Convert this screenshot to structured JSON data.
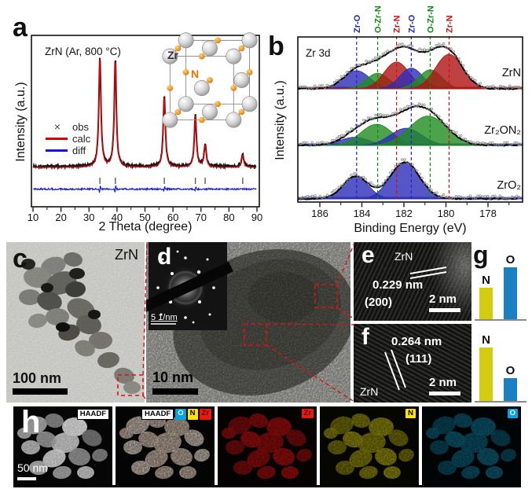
{
  "panel_a": {
    "letter": "a",
    "title": "ZrN (Ar, 800 °C)",
    "xlabel": "2 Theta (degree)",
    "ylabel": "Intensity (a.u.)",
    "legend": [
      {
        "marker": "×",
        "label": "obs",
        "color": "#333333"
      },
      {
        "marker": "line",
        "label": "calc",
        "color": "#dd0000"
      },
      {
        "marker": "line",
        "label": "diff",
        "color": "#1414e6"
      }
    ],
    "inset": {
      "zr_label": "Zr",
      "n_label": "N",
      "zr_color": "#9a9a9a",
      "n_color": "#e07800"
    }
  },
  "panel_b": {
    "letter": "b",
    "title": "Zr 3d",
    "xlabel": "Binding Energy (eV)",
    "ylabel": "Intensity (a.u.)"
  },
  "panel_c": {
    "letter": "c",
    "material_label": "ZrN",
    "scale_bar_label": "100 nm"
  },
  "panel_d": {
    "letter": "d",
    "scale_bar_label": "10 nm",
    "inset_scale_label": "5 1/nm"
  },
  "panel_e": {
    "letter": "e",
    "material_label": "ZrN",
    "d_spacing_label": "0.229 nm",
    "plane_label": "(200)",
    "scale_bar_label": "2 nm"
  },
  "panel_f": {
    "letter": "f",
    "material_label": "ZrN",
    "d_spacing_label": "0.264 nm",
    "plane_label": "(111)",
    "scale_bar_label": "2 nm"
  },
  "panel_g": {
    "letter": "g"
  },
  "panel_h": {
    "letter": "h",
    "scale_bar_label": "50 nm",
    "tiles": [
      {
        "name": "haadf",
        "badges": [
          "HAADF"
        ]
      },
      {
        "name": "haadf-overlay",
        "badges": [
          "HAADF",
          "O",
          "N",
          "Zr"
        ]
      },
      {
        "name": "zr-map",
        "badges": [
          "Zr"
        ]
      },
      {
        "name": "n-map",
        "badges": [
          "N"
        ]
      },
      {
        "name": "o-map",
        "badges": [
          "O"
        ]
      }
    ]
  },
  "colors": {
    "calc_red": "#dd0000",
    "diff_blue": "#1414e6",
    "xps_blue": "#2c2cb8",
    "xps_green": "#1f8c1f",
    "xps_red": "#b01212",
    "guide_blue": "#2222cc",
    "guide_green": "#0f8a0f",
    "guide_red": "#cc1111",
    "bar_N": "#d3cc11",
    "bar_O": "#1b7fc4",
    "badge_O": "#00a3e8",
    "badge_N": "#ffe400",
    "badge_Zr": "#e81a10",
    "map_red": "#b81010",
    "map_yellow": "#a8a00e",
    "map_teal": "#0e6a86"
  },
  "chart_data": [
    {
      "id": "panel_a_xrd",
      "type": "line",
      "title": "ZrN (Ar, 800 °C)",
      "xlabel": "2 Theta (degree)",
      "ylabel": "Intensity (a.u.)",
      "xlim": [
        10,
        90
      ],
      "xticks": [
        10,
        20,
        30,
        40,
        50,
        60,
        70,
        80,
        90
      ],
      "series": [
        "obs",
        "calc",
        "diff"
      ],
      "bragg_peaks": [
        {
          "two_theta": 33.9,
          "rel_intensity": 1.0
        },
        {
          "two_theta": 39.4,
          "rel_intensity": 0.98
        },
        {
          "two_theta": 56.9,
          "rel_intensity": 0.65
        },
        {
          "two_theta": 68.0,
          "rel_intensity": 0.47
        },
        {
          "two_theta": 71.5,
          "rel_intensity": 0.2
        },
        {
          "two_theta": 84.9,
          "rel_intensity": 0.11
        }
      ]
    },
    {
      "id": "panel_b_xps",
      "type": "area",
      "title": "Zr 3d",
      "xlabel": "Binding Energy (eV)",
      "ylabel": "Intensity (a.u.)",
      "xlim": [
        187,
        176.5
      ],
      "xticks": [
        186,
        184,
        182,
        180,
        178
      ],
      "guides": [
        {
          "label": "Zr-O",
          "ev": 184.25,
          "color": "#2222cc"
        },
        {
          "label": "O-Zr-N",
          "ev": 183.25,
          "color": "#0f8a0f"
        },
        {
          "label": "Zr-N",
          "ev": 182.35,
          "color": "#cc1111"
        },
        {
          "label": "Zr-O",
          "ev": 181.65,
          "color": "#2222cc"
        },
        {
          "label": "O-Zr-N",
          "ev": 180.75,
          "color": "#0f8a0f"
        },
        {
          "label": "Zr-N",
          "ev": 179.85,
          "color": "#cc1111"
        }
      ],
      "spectra": [
        {
          "name": "ZrN",
          "components": [
            {
              "assign": "Zr-O",
              "center": 184.25,
              "sigma": 0.62,
              "height": 0.42,
              "color": "#2c2cb8"
            },
            {
              "assign": "O-Zr-N",
              "center": 183.25,
              "sigma": 0.55,
              "height": 0.36,
              "color": "#1f8c1f"
            },
            {
              "assign": "Zr-N",
              "center": 182.35,
              "sigma": 0.6,
              "height": 0.62,
              "color": "#b01212"
            },
            {
              "assign": "Zr-O",
              "center": 181.65,
              "sigma": 0.55,
              "height": 0.48,
              "color": "#2c2cb8"
            },
            {
              "assign": "O-Zr-N",
              "center": 180.75,
              "sigma": 0.55,
              "height": 0.44,
              "color": "#1f8c1f"
            },
            {
              "assign": "Zr-N",
              "center": 179.85,
              "sigma": 0.65,
              "height": 0.8,
              "color": "#b01212"
            }
          ]
        },
        {
          "name": "Zr₂ON₂",
          "components": [
            {
              "assign": "Zr-O",
              "center": 184.35,
              "sigma": 0.7,
              "height": 0.2,
              "color": "#2c2cb8"
            },
            {
              "assign": "O-Zr-N",
              "center": 183.3,
              "sigma": 0.75,
              "height": 0.52,
              "color": "#1f8c1f"
            },
            {
              "assign": "Zr-O",
              "center": 181.9,
              "sigma": 0.75,
              "height": 0.42,
              "color": "#2c2cb8"
            },
            {
              "assign": "O-Zr-N",
              "center": 180.85,
              "sigma": 0.9,
              "height": 0.72,
              "color": "#1f8c1f"
            }
          ]
        },
        {
          "name": "ZrO₂",
          "components": [
            {
              "assign": "Zr-O",
              "center": 184.3,
              "sigma": 0.6,
              "height": 0.52,
              "color": "#2c2cb8"
            },
            {
              "assign": "Zr-O",
              "center": 181.95,
              "sigma": 0.7,
              "height": 0.85,
              "color": "#2c2cb8"
            }
          ]
        }
      ]
    },
    {
      "id": "panel_g_eds_bars",
      "type": "bar",
      "charts": [
        {
          "categories": [
            "N",
            "O"
          ],
          "values": [
            0.55,
            0.92
          ]
        },
        {
          "categories": [
            "N",
            "O"
          ],
          "values": [
            0.95,
            0.4
          ]
        }
      ],
      "colors": {
        "N": "#d3cc11",
        "O": "#1b7fc4"
      }
    }
  ]
}
